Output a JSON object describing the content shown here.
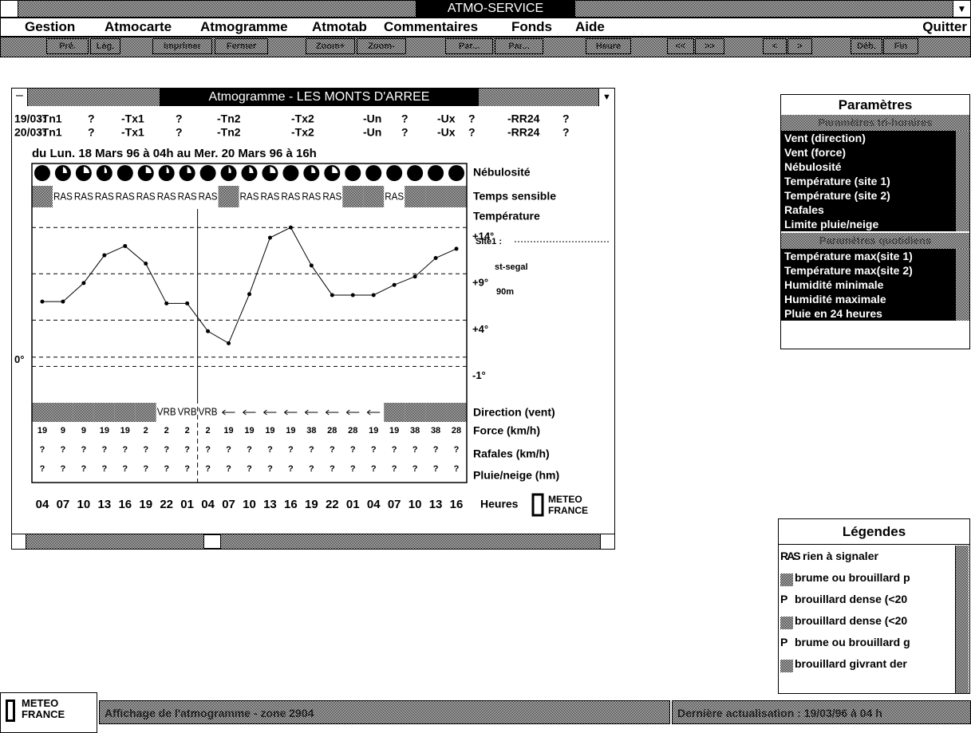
{
  "app": {
    "title": "ATMO-SERVICE",
    "menu": [
      "Gestion",
      "Atmocarte",
      "Atmogramme",
      "Atmotab",
      "Commentaires",
      "Fonds",
      "Aide"
    ],
    "quit": "Quitter",
    "toolbar": [
      "Pré.",
      "Lég.",
      "Imprimer",
      "Fermer",
      "Zoom+",
      "Zoom-",
      "Par...",
      "Par...",
      "Heure",
      "<<",
      ">>",
      "<",
      ">",
      "Déb.",
      "Fin"
    ]
  },
  "window": {
    "title": "Atmogramme - LES MONTS D'ARREE",
    "summary": [
      [
        "19/03:",
        "-Tn1",
        "?",
        "-Tx1",
        "?",
        "-Tn2",
        "-Tx2",
        "-Un",
        "?",
        "-Ux",
        "?",
        "-RR24",
        "?"
      ],
      [
        "20/03:",
        "-Tn1",
        "?",
        "-Tx1",
        "?",
        "-Tn2",
        "-Tx2",
        "-Un",
        "?",
        "-Ux",
        "?",
        "-RR24",
        "?"
      ]
    ],
    "period": "du Lun. 18 Mars 96 à 04h au Mer. 20 Mars 96 à 16h",
    "row_labels": {
      "cloud": "Nébulosité",
      "weather": "Temps sensible",
      "temperature": "Température",
      "direction": "Direction (vent)",
      "force": "Force (km/h)",
      "gusts": "Rafales (km/h)",
      "rain": "Pluie/neige (hm)",
      "hours": "Heures"
    },
    "chart": {
      "type": "line",
      "categories": [
        "04",
        "07",
        "10",
        "13",
        "16",
        "19",
        "22",
        "01",
        "04",
        "07",
        "10",
        "13",
        "16",
        "19",
        "22",
        "01",
        "04",
        "07",
        "10",
        "13",
        "16"
      ],
      "values": [
        6.0,
        6.0,
        8.0,
        11.0,
        12.0,
        10.1,
        5.8,
        5.8,
        2.8,
        1.5,
        6.8,
        12.9,
        14.0,
        9.9,
        6.7,
        6.7,
        6.7,
        7.8,
        8.7,
        10.7,
        11.7
      ],
      "color": "#000000",
      "ylim": [
        -4.5,
        16
      ],
      "yticks": [
        {
          "value": 14,
          "label": "+14°"
        },
        {
          "value": 9,
          "label": "+9°"
        },
        {
          "value": 4,
          "label": "+4°"
        },
        {
          "value": -1,
          "label": "-1°"
        }
      ],
      "y_left_ticks": [
        {
          "value": 0,
          "label": "0°"
        }
      ],
      "grid": true
    },
    "weather": [
      null,
      "RAS",
      "RAS",
      "RAS",
      "RAS",
      "RAS",
      "RAS",
      "RAS",
      "RAS",
      null,
      "RAS",
      "RAS",
      "RAS",
      "RAS",
      "RAS",
      null,
      null,
      "RAS",
      null,
      null,
      null
    ],
    "direction": [
      null,
      null,
      null,
      null,
      null,
      null,
      "VRB",
      "VRB",
      "VRB",
      null,
      null,
      null,
      null,
      null,
      null,
      null,
      null,
      null,
      null,
      null,
      null
    ],
    "force": [
      19,
      9,
      9,
      19,
      19,
      2,
      2,
      2,
      2,
      19,
      19,
      19,
      19,
      38,
      28,
      28,
      19,
      19,
      38,
      38,
      28
    ],
    "gusts": [
      "?",
      "?",
      "?",
      "?",
      "?",
      "?",
      "?",
      "?",
      "?",
      "?",
      "?",
      "?",
      "?",
      "?",
      "?",
      "?",
      "?",
      "?",
      "?",
      "?",
      "?"
    ],
    "rain": [
      "?",
      "?",
      "?",
      "?",
      "?",
      "?",
      "?",
      "?",
      "?",
      "?",
      "?",
      "?",
      "?",
      "?",
      "?",
      "?",
      "?",
      "?",
      "?",
      "?",
      "?"
    ],
    "site": [
      "Site1 :",
      "st-segal",
      "90m"
    ],
    "logo": [
      "METEO",
      "FRANCE"
    ]
  },
  "parameters": {
    "title": "Paramètres",
    "groups": [
      {
        "name": "Paramètres tri-horaires",
        "items": [
          "Vent (direction)",
          "Vent (force)",
          "Nébulosité",
          "Température (site 1)",
          "Température (site 2)",
          "Rafales",
          "Limite pluie/neige"
        ]
      },
      {
        "name": "Paramètres quotidiens",
        "items": [
          "Température max(site 1)",
          "Température max(site 2)",
          "Humidité minimale",
          "Humidité maximale",
          "Pluie en 24 heures"
        ]
      }
    ]
  },
  "legend": {
    "title": "Légendes",
    "items": [
      {
        "symbol": "RAS",
        "text": "rien à signaler"
      },
      {
        "text": "brume ou brouillard p"
      },
      {
        "symbol": "P",
        "text": "brouillard dense (<20"
      },
      {
        "text": "brouillard dense (<20"
      },
      {
        "symbol": "P",
        "text": "brume ou brouillard g"
      },
      {
        "text": "brouillard givrant der"
      }
    ]
  },
  "status": {
    "logo": [
      "METEO",
      "FRANCE"
    ],
    "message": "Affichage de l'atmogramme - zone 2904",
    "update": "Dernière actualisation : 19/03/96 à 04 h"
  }
}
